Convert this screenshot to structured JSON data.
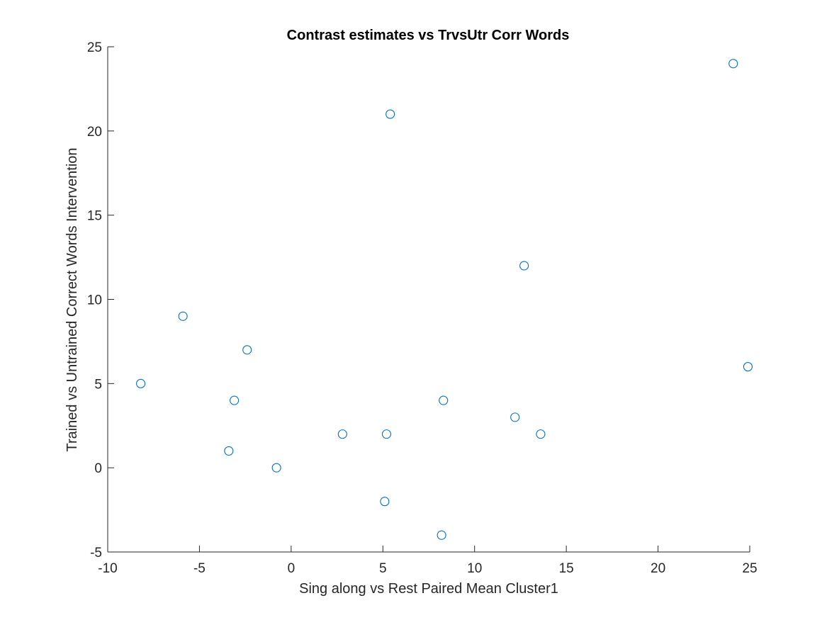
{
  "chart_data": {
    "type": "scatter",
    "title": "Contrast estimates vs TrvsUtr Corr Words",
    "xlabel": "Sing along vs Rest Paired Mean Cluster1",
    "ylabel": "Trained vs Untrained Correct Words Intervention",
    "xlim": [
      -10,
      25
    ],
    "ylim": [
      -5,
      25
    ],
    "xticks": [
      -10,
      -5,
      0,
      5,
      10,
      15,
      20,
      25
    ],
    "yticks": [
      -5,
      0,
      5,
      10,
      15,
      20,
      25
    ],
    "xtick_labels": [
      "-10",
      "-5",
      "0",
      "5",
      "10",
      "15",
      "20",
      "25"
    ],
    "ytick_labels": [
      "-5",
      "0",
      "5",
      "10",
      "15",
      "20",
      "25"
    ],
    "grid": false,
    "marker_color": "#0072BD",
    "axis_color": "#262626",
    "series": [
      {
        "x": [
          -8.2,
          -5.9,
          -3.4,
          -3.1,
          -2.4,
          -0.8,
          2.8,
          5.1,
          5.2,
          5.4,
          8.2,
          8.3,
          12.2,
          12.7,
          13.6,
          24.1,
          24.9
        ],
        "y": [
          5,
          9,
          1,
          4,
          7,
          0,
          2,
          -2,
          2,
          21,
          -4,
          4,
          3,
          12,
          2,
          24,
          6
        ]
      }
    ]
  }
}
